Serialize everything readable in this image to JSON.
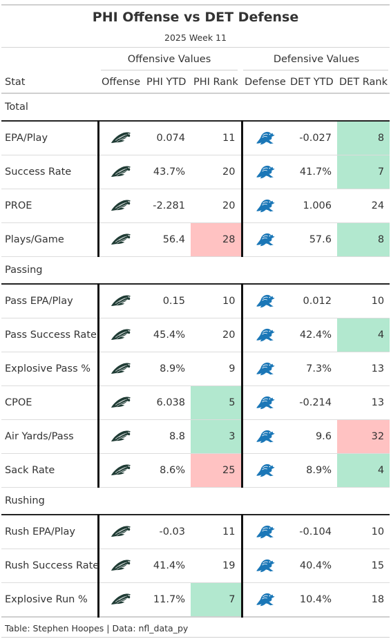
{
  "title": "PHI Offense vs DET Defense",
  "subtitle": "2025 Week 11",
  "spanners": {
    "offense": "Offensive Values",
    "defense": "Defensive Values"
  },
  "columns": {
    "stat": "Stat",
    "offense": "Offense",
    "phi_ytd": "PHI YTD",
    "phi_rank": "PHI Rank",
    "defense": "Defense",
    "det_ytd": "DET YTD",
    "det_rank": "DET Rank"
  },
  "icons": {
    "offense": "eagles-logo-icon",
    "defense": "lions-logo-icon"
  },
  "colors": {
    "good": "#b2e8cf",
    "bad": "#ffc2c2",
    "eagles_green": "#004c54",
    "lions_blue": "#0076b6"
  },
  "groups": [
    {
      "label": "Total",
      "rows": [
        {
          "stat": "EPA/Play",
          "phi_ytd": "0.074",
          "phi_rank": "11",
          "phi_hl": "",
          "det_ytd": "-0.027",
          "det_rank": "8",
          "det_hl": "good"
        },
        {
          "stat": "Success Rate",
          "phi_ytd": "43.7%",
          "phi_rank": "20",
          "phi_hl": "",
          "det_ytd": "41.7%",
          "det_rank": "7",
          "det_hl": "good"
        },
        {
          "stat": "PROE",
          "phi_ytd": "-2.281",
          "phi_rank": "20",
          "phi_hl": "",
          "det_ytd": "1.006",
          "det_rank": "24",
          "det_hl": ""
        },
        {
          "stat": "Plays/Game",
          "phi_ytd": "56.4",
          "phi_rank": "28",
          "phi_hl": "bad",
          "det_ytd": "57.6",
          "det_rank": "8",
          "det_hl": "good"
        }
      ]
    },
    {
      "label": "Passing",
      "rows": [
        {
          "stat": "Pass EPA/Play",
          "phi_ytd": "0.15",
          "phi_rank": "10",
          "phi_hl": "",
          "det_ytd": "0.012",
          "det_rank": "10",
          "det_hl": ""
        },
        {
          "stat": "Pass Success Rate",
          "phi_ytd": "45.4%",
          "phi_rank": "20",
          "phi_hl": "",
          "det_ytd": "42.4%",
          "det_rank": "4",
          "det_hl": "good"
        },
        {
          "stat": "Explosive Pass %",
          "phi_ytd": "8.9%",
          "phi_rank": "9",
          "phi_hl": "",
          "det_ytd": "7.3%",
          "det_rank": "13",
          "det_hl": ""
        },
        {
          "stat": "CPOE",
          "phi_ytd": "6.038",
          "phi_rank": "5",
          "phi_hl": "good",
          "det_ytd": "-0.214",
          "det_rank": "13",
          "det_hl": ""
        },
        {
          "stat": "Air Yards/Pass",
          "phi_ytd": "8.8",
          "phi_rank": "3",
          "phi_hl": "good",
          "det_ytd": "9.6",
          "det_rank": "32",
          "det_hl": "bad"
        },
        {
          "stat": "Sack Rate",
          "phi_ytd": "8.6%",
          "phi_rank": "25",
          "phi_hl": "bad",
          "det_ytd": "8.9%",
          "det_rank": "4",
          "det_hl": "good"
        }
      ]
    },
    {
      "label": "Rushing",
      "rows": [
        {
          "stat": "Rush EPA/Play",
          "phi_ytd": "-0.03",
          "phi_rank": "11",
          "phi_hl": "",
          "det_ytd": "-0.104",
          "det_rank": "10",
          "det_hl": ""
        },
        {
          "stat": "Rush Success Rate",
          "phi_ytd": "41.4%",
          "phi_rank": "19",
          "phi_hl": "",
          "det_ytd": "40.4%",
          "det_rank": "15",
          "det_hl": ""
        },
        {
          "stat": "Explosive Run %",
          "phi_ytd": "11.7%",
          "phi_rank": "7",
          "phi_hl": "good",
          "det_ytd": "10.4%",
          "det_rank": "18",
          "det_hl": ""
        }
      ]
    }
  ],
  "source_note": "Table: Stephen Hoopes | Data: nfl_data_py"
}
